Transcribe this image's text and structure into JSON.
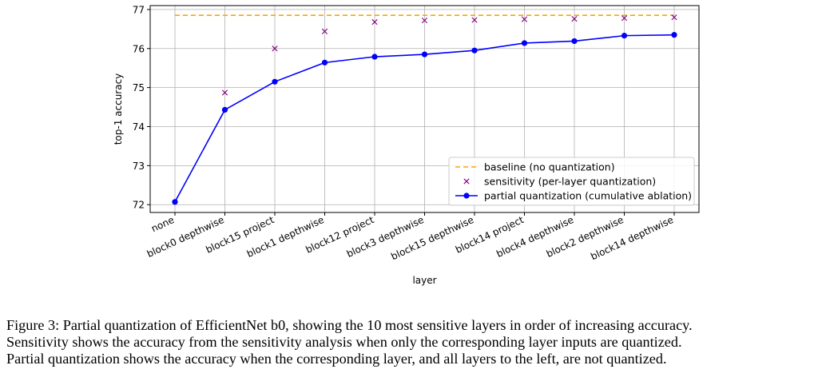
{
  "chart_data": {
    "type": "line",
    "xlabel": "layer",
    "ylabel": "top-1 accuracy",
    "ylim": [
      71.8,
      77.1
    ],
    "yticks": [
      72,
      73,
      74,
      75,
      76,
      77
    ],
    "grid": true,
    "legend_position": "lower-right",
    "categories": [
      "none",
      "block0 depthwise",
      "block15 project",
      "block1 depthwise",
      "block12 project",
      "block3 depthwise",
      "block15 depthwise",
      "block14 project",
      "block4 depthwise",
      "block2 depthwise",
      "block14 depthwise"
    ],
    "series": [
      {
        "name": "baseline (no quantization)",
        "kind": "dashed-line",
        "color": "#ffa500",
        "value": 76.85
      },
      {
        "name": "sensitivity (per-layer quantization)",
        "kind": "marker-x",
        "color": "#800080",
        "values": [
          null,
          74.87,
          76.0,
          76.44,
          76.68,
          76.72,
          76.73,
          76.75,
          76.76,
          76.78,
          76.8
        ]
      },
      {
        "name": "partial quantization (cumulative ablation)",
        "kind": "line-dot",
        "color": "#0000ff",
        "values": [
          72.07,
          74.43,
          75.15,
          75.64,
          75.79,
          75.85,
          75.95,
          76.14,
          76.19,
          76.33,
          76.35
        ]
      }
    ]
  },
  "caption": {
    "line1": "Figure 3: Partial quantization of EfficientNet b0, showing the 10 most sensitive layers in order of increasing accuracy.",
    "line2": "Sensitivity shows the accuracy from the sensitivity analysis when only the corresponding layer inputs are quantized.",
    "line3": "Partial quantization shows the accuracy when the corresponding layer, and all layers to the left, are not quantized."
  }
}
